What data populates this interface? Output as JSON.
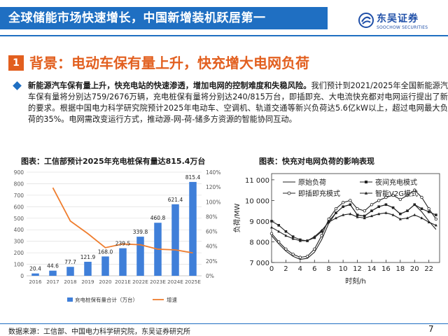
{
  "header": {
    "title": "全球储能市场快速增长，中国新增装机跃居第一",
    "logo_cn": "东吴证券",
    "logo_en": "SOOCHOW SECURITIES",
    "brand_color": "#1f6fc2"
  },
  "section": {
    "number": "1",
    "title": "背景：电动车保有量上升，快充增大电网负荷",
    "accent_color": "#e25f1f"
  },
  "bullet": {
    "bold_text": "新能源汽车保有量上升，快充电站的快速渗透，增加电网的控制难度和失稳风险。",
    "body_text": "我们预计到2021/2025年全国新能源汽车保有量将分别达759/2676万辆，充电桩保有量将分别达240/815万台，即插即充、大电流快充都对电网运行提出了新的要求。根据中国电力科学研究院预计2025年电动车、空调机、轨道交通等新兴负荷达5.6亿kW以上，超过电网最大负荷的35%。电网需改变运行方式，推动源-网-荷-储多方资源的智能协同互动。"
  },
  "left_chart": {
    "title": "图表：工信部预计2025年充电桩保有量达815.4万台"
  },
  "right_chart": {
    "title": "图表：快充对电网负荷的影响表现",
    "ylabel": "负荷/MW",
    "xlabel": "时刻/h",
    "legend": {
      "original": "原始负荷",
      "night": "夜间充电模式",
      "plugin": "即插即充模式",
      "v2g": "智能V2G模式"
    }
  },
  "chart_data": [
    {
      "type": "bar",
      "categories": [
        "2016",
        "2017",
        "2018",
        "2019",
        "2020",
        "2021E",
        "2022E",
        "2023E",
        "2024E",
        "2025E"
      ],
      "series": [
        {
          "name": "充电桩保有量合计（万台）",
          "values": [
            20.4,
            44.6,
            77.7,
            121.9,
            168.0,
            239.5,
            339.8,
            460.8,
            621.4,
            815.4
          ],
          "labels": [
            "20.4",
            "44.6",
            "77.7",
            "121.9",
            "168.0",
            "239.5",
            "339.8",
            "460.8",
            "621.4",
            "815.4"
          ],
          "color": "#3f7fd9"
        },
        {
          "name": "增速",
          "type": "line",
          "axis": "right",
          "values": [
            null,
            1.19,
            0.74,
            0.57,
            0.38,
            0.43,
            0.42,
            0.36,
            0.35,
            0.31
          ],
          "color": "#ef7d2e"
        }
      ],
      "ylim": [
        0,
        900
      ],
      "yticks": [
        "0",
        "100",
        "200",
        "300",
        "400",
        "500",
        "600",
        "700",
        "800",
        "900"
      ],
      "y2lim": [
        0,
        1.4
      ],
      "y2ticks": [
        "0%",
        "20%",
        "40%",
        "60%",
        "80%",
        "100%",
        "120%",
        "140%"
      ],
      "legend_position": "bottom"
    },
    {
      "type": "line",
      "x": [
        0,
        1,
        2,
        3,
        4,
        5,
        6,
        7,
        8,
        9,
        10,
        11,
        12,
        13,
        14,
        15,
        16,
        17,
        18,
        19,
        20,
        21,
        22,
        23
      ],
      "xticks": [
        "0",
        "2",
        "4",
        "6",
        "8",
        "10",
        "12",
        "14",
        "16",
        "18",
        "20",
        "22"
      ],
      "yticks": [
        "7 000",
        "8 000",
        "9 000",
        "10 000",
        "11 000"
      ],
      "ylim": [
        7000,
        11300
      ],
      "xlabel": "时刻/h",
      "ylabel": "负荷/MW",
      "series": [
        {
          "name": "原始负荷",
          "values": [
            8300,
            7900,
            7550,
            7300,
            7150,
            7200,
            7500,
            8100,
            8900,
            9400,
            9700,
            9800,
            9300,
            9250,
            9500,
            9700,
            9800,
            9650,
            9350,
            9500,
            9800,
            9450,
            9000,
            8600
          ]
        },
        {
          "name": "夜间充电模式",
          "values": [
            9000,
            8800,
            8500,
            8250,
            8100,
            8050,
            8200,
            8500,
            9000,
            9400,
            9700,
            9800,
            9300,
            9250,
            9500,
            9700,
            9800,
            9650,
            9350,
            9500,
            9800,
            9600,
            9450,
            9300
          ]
        },
        {
          "name": "即插即充模式",
          "values": [
            8400,
            8000,
            7650,
            7400,
            7250,
            7300,
            7650,
            8300,
            9100,
            9600,
            9900,
            10000,
            9600,
            9500,
            9800,
            10000,
            10150,
            10250,
            10050,
            10250,
            10500,
            10150,
            9600,
            9100
          ]
        },
        {
          "name": "智能V2G模式",
          "values": [
            8700,
            8500,
            8300,
            8150,
            8050,
            8050,
            8250,
            8550,
            8950,
            9150,
            9300,
            9350,
            9200,
            9150,
            9250,
            9350,
            9400,
            9300,
            9100,
            9150,
            9300,
            9150,
            8950,
            8800
          ]
        }
      ],
      "legend_position": "top"
    }
  ],
  "footer": {
    "source": "数据来源：工信部、中国电力科学研究院，东吴证券研究所",
    "page": "7"
  }
}
